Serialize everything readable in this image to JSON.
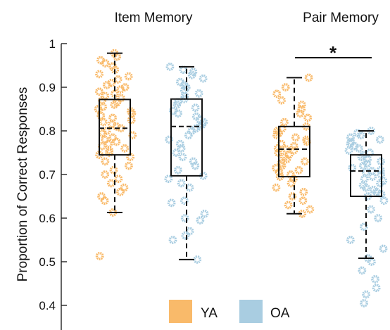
{
  "chart_data": {
    "type": "box",
    "title": "",
    "ylabel": "Proportion of Correct Responses",
    "ylim": [
      0.38,
      1.0
    ],
    "yticks": [
      0.4,
      0.5,
      0.6,
      0.7,
      0.8,
      0.9,
      1
    ],
    "ytick_labels": [
      "0.4",
      "0.5",
      "0.6",
      "0.7",
      "0.8",
      "0.9",
      "1"
    ],
    "grid": false,
    "legend_position": "bottom",
    "panels": [
      "Item Memory",
      "Pair Memory"
    ],
    "series": [
      {
        "name": "YA",
        "color": "#F9BA6A"
      },
      {
        "name": "OA",
        "color": "#A9CDE1"
      }
    ],
    "boxes": [
      {
        "panel": "Item Memory",
        "group": "YA",
        "whisker_low": 0.613,
        "q1": 0.745,
        "median": 0.806,
        "q3": 0.872,
        "whisker_high": 0.978,
        "points": [
          0.978,
          0.97,
          0.962,
          0.955,
          0.948,
          0.94,
          0.93,
          0.925,
          0.918,
          0.91,
          0.905,
          0.9,
          0.895,
          0.89,
          0.885,
          0.88,
          0.875,
          0.87,
          0.865,
          0.86,
          0.855,
          0.85,
          0.845,
          0.84,
          0.835,
          0.83,
          0.825,
          0.82,
          0.815,
          0.81,
          0.806,
          0.8,
          0.795,
          0.79,
          0.785,
          0.78,
          0.775,
          0.77,
          0.765,
          0.76,
          0.755,
          0.75,
          0.745,
          0.74,
          0.73,
          0.72,
          0.71,
          0.7,
          0.69,
          0.68,
          0.67,
          0.66,
          0.65,
          0.64,
          0.613,
          0.513
        ]
      },
      {
        "panel": "Item Memory",
        "group": "OA",
        "whisker_low": 0.505,
        "q1": 0.697,
        "median": 0.81,
        "q3": 0.873,
        "whisker_high": 0.947,
        "points": [
          0.947,
          0.94,
          0.935,
          0.928,
          0.92,
          0.912,
          0.905,
          0.9,
          0.893,
          0.886,
          0.88,
          0.873,
          0.866,
          0.86,
          0.853,
          0.846,
          0.84,
          0.833,
          0.826,
          0.82,
          0.814,
          0.81,
          0.805,
          0.8,
          0.79,
          0.78,
          0.77,
          0.76,
          0.75,
          0.74,
          0.73,
          0.72,
          0.71,
          0.697,
          0.69,
          0.68,
          0.67,
          0.64,
          0.635,
          0.61,
          0.6,
          0.595,
          0.57,
          0.56,
          0.55,
          0.505
        ]
      },
      {
        "panel": "Pair Memory",
        "group": "YA",
        "whisker_low": 0.61,
        "q1": 0.695,
        "median": 0.758,
        "q3": 0.81,
        "whisker_high": 0.922,
        "points": [
          0.922,
          0.9,
          0.885,
          0.87,
          0.86,
          0.85,
          0.84,
          0.83,
          0.82,
          0.81,
          0.805,
          0.8,
          0.795,
          0.79,
          0.785,
          0.78,
          0.775,
          0.77,
          0.765,
          0.76,
          0.758,
          0.755,
          0.75,
          0.745,
          0.74,
          0.735,
          0.73,
          0.725,
          0.72,
          0.715,
          0.71,
          0.705,
          0.7,
          0.695,
          0.69,
          0.68,
          0.67,
          0.66,
          0.65,
          0.64,
          0.63,
          0.62,
          0.61
        ]
      },
      {
        "panel": "Pair Memory",
        "group": "OA",
        "whisker_low": 0.508,
        "q1": 0.65,
        "median": 0.708,
        "q3": 0.745,
        "whisker_high": 0.8,
        "points": [
          0.8,
          0.795,
          0.79,
          0.785,
          0.78,
          0.775,
          0.77,
          0.765,
          0.76,
          0.755,
          0.75,
          0.745,
          0.74,
          0.735,
          0.73,
          0.725,
          0.72,
          0.715,
          0.71,
          0.708,
          0.705,
          0.7,
          0.695,
          0.69,
          0.685,
          0.68,
          0.675,
          0.67,
          0.665,
          0.66,
          0.655,
          0.65,
          0.64,
          0.62,
          0.6,
          0.58,
          0.55,
          0.53,
          0.508,
          0.5,
          0.48,
          0.46,
          0.44,
          0.425,
          0.405
        ]
      }
    ],
    "annotations": [
      {
        "text": "*",
        "between": [
          "Pair Memory YA",
          "Pair Memory OA"
        ]
      }
    ]
  }
}
